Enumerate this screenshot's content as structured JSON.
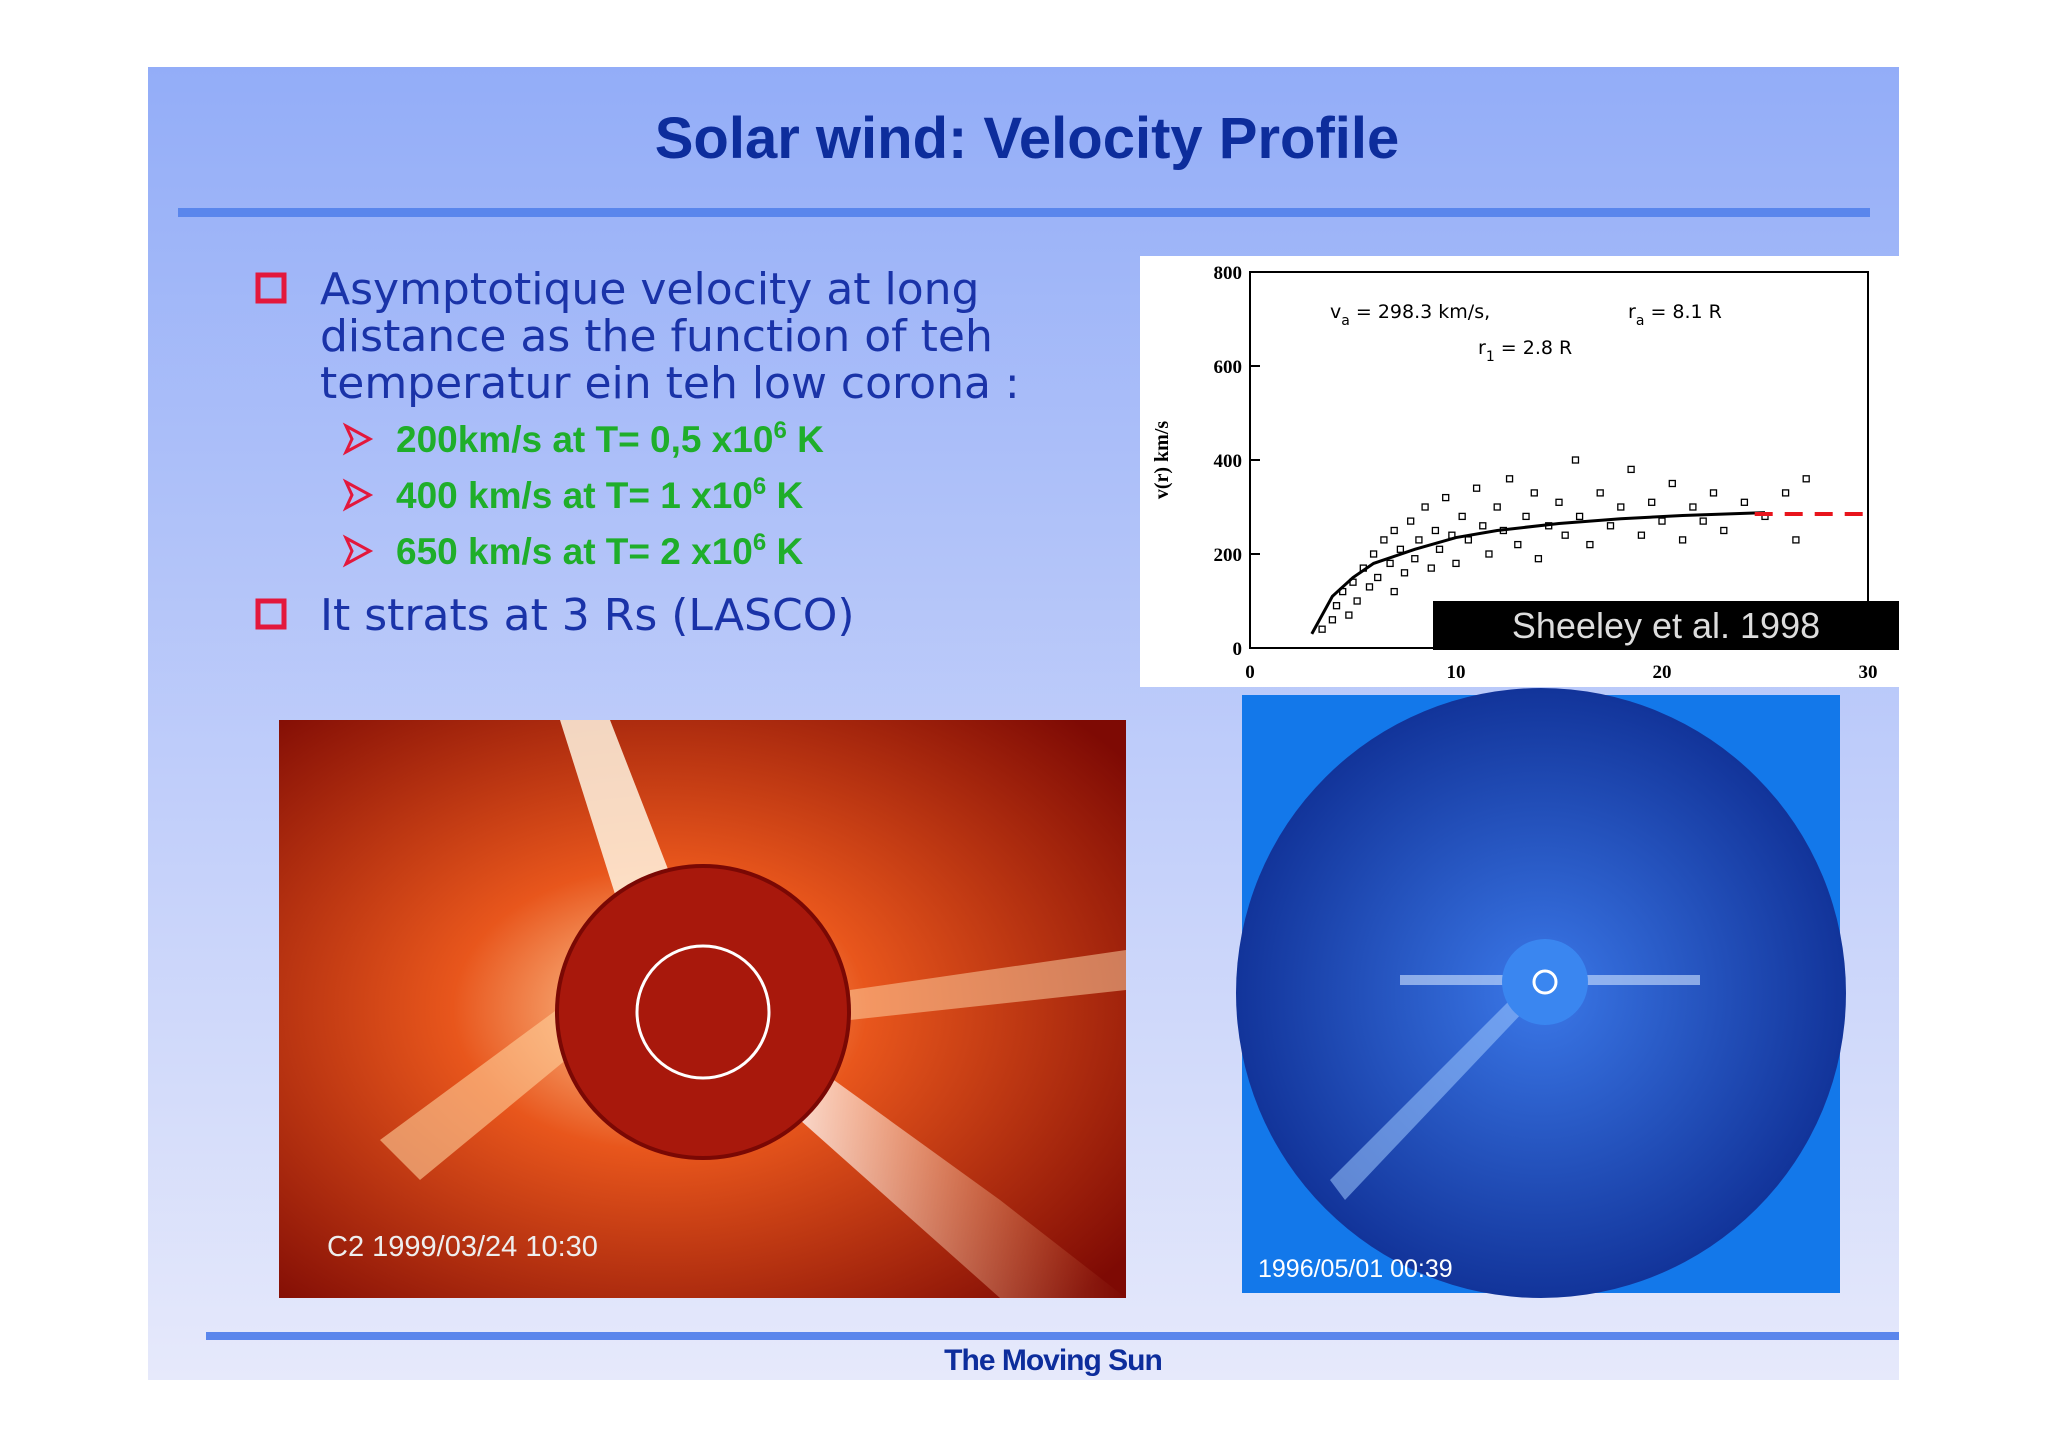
{
  "header": {
    "title": "Solar wind: Velocity Profile"
  },
  "bullets": [
    {
      "text": "Asymptotique velocity  at long",
      "lines": [
        "distance as the function of teh",
        "temperatur ein teh low corona :"
      ]
    },
    {
      "text": "It strats at 3 Rs (LASCO)"
    }
  ],
  "sub_bullets": [
    {
      "text": "200km/s at T= 0,5 x10",
      "sup": "6",
      "tail": " K"
    },
    {
      "text": "400 km/s at T= 1 x10",
      "sup": "6",
      "tail": " K"
    },
    {
      "text": "650 km/s at T= 2 x10",
      "sup": "6",
      "tail": " K"
    }
  ],
  "chart_data": {
    "type": "scatter",
    "ylabel": "v(r) km/s",
    "xlim": [
      0,
      30
    ],
    "ylim": [
      0,
      800
    ],
    "xticks": [
      0,
      10,
      20,
      30
    ],
    "yticks": [
      0,
      200,
      400,
      600,
      800
    ],
    "annotations": [
      {
        "base": "v",
        "sub": "a",
        "rest": " = 298.3 km/s,"
      },
      {
        "base": "r",
        "sub": "a",
        "rest": " = 8.1 R"
      },
      {
        "base": "r",
        "sub": "1",
        "rest": " = 2.8 R"
      }
    ],
    "source": "Sheeley et al. 1998",
    "x": [
      3.5,
      4,
      4.2,
      4.5,
      4.8,
      5,
      5.2,
      5.5,
      5.8,
      6,
      6.2,
      6.5,
      6.8,
      7,
      7,
      7.3,
      7.5,
      7.8,
      8,
      8.2,
      8.5,
      8.8,
      9,
      9.2,
      9.5,
      9.8,
      10,
      10.3,
      10.6,
      11,
      11.3,
      11.6,
      12,
      12.3,
      12.6,
      13,
      13.4,
      13.8,
      14,
      14.5,
      15,
      15.3,
      15.8,
      16,
      16.5,
      17,
      17.5,
      18,
      18.5,
      19,
      19.5,
      20,
      20.5,
      21,
      21.5,
      22,
      22.5,
      23,
      24,
      25,
      26,
      26.5,
      27
    ],
    "y": [
      40,
      60,
      90,
      120,
      70,
      140,
      100,
      170,
      130,
      200,
      150,
      230,
      180,
      120,
      250,
      210,
      160,
      270,
      190,
      230,
      300,
      170,
      250,
      210,
      320,
      240,
      180,
      280,
      230,
      340,
      260,
      200,
      300,
      250,
      360,
      220,
      280,
      330,
      190,
      260,
      310,
      240,
      400,
      280,
      220,
      330,
      260,
      300,
      380,
      240,
      310,
      270,
      350,
      230,
      300,
      270,
      330,
      250,
      310,
      280,
      330,
      230,
      360
    ],
    "fit": {
      "x": [
        3,
        4,
        5,
        6,
        8,
        10,
        12,
        15,
        18,
        21,
        25
      ],
      "y": [
        30,
        110,
        150,
        180,
        210,
        235,
        250,
        265,
        275,
        282,
        288
      ]
    },
    "extrapolation": {
      "x": [
        24.5,
        30
      ],
      "y": [
        285,
        285
      ],
      "color": "#e8141c"
    }
  },
  "images": [
    {
      "caption": "C2 1999/03/24 10:30"
    },
    {
      "caption": "1996/05/01 00:39"
    }
  ],
  "footer": {
    "text": "The Moving Sun"
  }
}
